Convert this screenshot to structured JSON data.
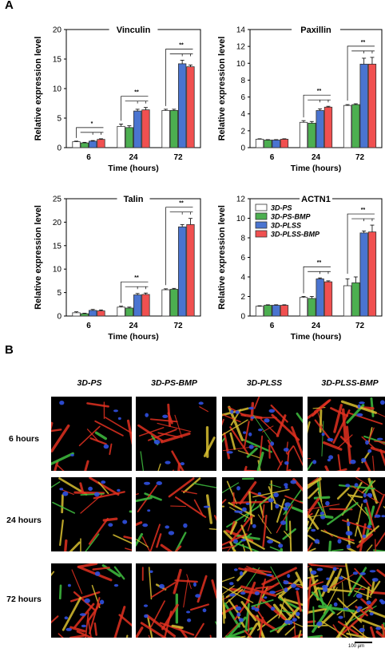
{
  "panel_labels": {
    "a": "A",
    "b": "B"
  },
  "legend": {
    "entries": [
      {
        "label": "3D-PS",
        "color": "#ffffff"
      },
      {
        "label": "3D-PS-BMP",
        "color": "#4caf50"
      },
      {
        "label": "3D-PLSS",
        "color": "#4a74d0"
      },
      {
        "label": "3D-PLSS-BMP",
        "color": "#f05050"
      }
    ]
  },
  "chart_data": [
    {
      "type": "bar",
      "title": "Vinculin",
      "xlabel": "Time (hours)",
      "ylabel": "Relative expression level",
      "categories": [
        "6",
        "24",
        "72"
      ],
      "ylim": [
        0,
        20
      ],
      "yticks": [
        0,
        5,
        10,
        15,
        20
      ],
      "series": [
        {
          "name": "3D-PS",
          "values": [
            1.0,
            3.6,
            6.3
          ],
          "errors": [
            0.1,
            0.4,
            0.2
          ]
        },
        {
          "name": "3D-PS-BMP",
          "values": [
            0.8,
            3.4,
            6.3
          ],
          "errors": [
            0.1,
            0.3,
            0.2
          ]
        },
        {
          "name": "3D-PLSS",
          "values": [
            1.1,
            6.2,
            14.2
          ],
          "errors": [
            0.1,
            0.3,
            0.6
          ]
        },
        {
          "name": "3D-PLSS-BMP",
          "values": [
            1.4,
            6.4,
            13.7
          ],
          "errors": [
            0.1,
            0.4,
            0.3
          ]
        }
      ],
      "significance": [
        "*",
        "**",
        "**"
      ]
    },
    {
      "type": "bar",
      "title": "Paxillin",
      "xlabel": "Time (hours)",
      "ylabel": "Relative expression level",
      "categories": [
        "6",
        "24",
        "72"
      ],
      "ylim": [
        0,
        14
      ],
      "yticks": [
        0,
        2,
        4,
        6,
        8,
        10,
        12,
        14
      ],
      "series": [
        {
          "name": "3D-PS",
          "values": [
            1.0,
            3.0,
            5.0
          ],
          "errors": [
            0.05,
            0.2,
            0.1
          ]
        },
        {
          "name": "3D-PS-BMP",
          "values": [
            0.9,
            2.9,
            5.1
          ],
          "errors": [
            0.05,
            0.2,
            0.1
          ]
        },
        {
          "name": "3D-PLSS",
          "values": [
            0.9,
            4.4,
            9.9
          ],
          "errors": [
            0.05,
            0.2,
            0.7
          ]
        },
        {
          "name": "3D-PLSS-BMP",
          "values": [
            1.0,
            4.8,
            9.9
          ],
          "errors": [
            0.05,
            0.1,
            0.8
          ]
        }
      ],
      "significance": [
        "",
        "**",
        "**"
      ]
    },
    {
      "type": "bar",
      "title": "Talin",
      "xlabel": "Time (hours)",
      "ylabel": "Relative expression level",
      "categories": [
        "6",
        "24",
        "72"
      ],
      "ylim": [
        0,
        25
      ],
      "yticks": [
        0,
        5,
        10,
        15,
        20,
        25
      ],
      "series": [
        {
          "name": "3D-PS",
          "values": [
            0.7,
            1.9,
            5.6
          ],
          "errors": [
            0.2,
            0.2,
            0.2
          ]
        },
        {
          "name": "3D-PS-BMP",
          "values": [
            0.5,
            1.7,
            5.7
          ],
          "errors": [
            0.1,
            0.2,
            0.2
          ]
        },
        {
          "name": "3D-PLSS",
          "values": [
            1.2,
            4.5,
            19.0
          ],
          "errors": [
            0.2,
            0.3,
            0.5
          ]
        },
        {
          "name": "3D-PLSS-BMP",
          "values": [
            1.1,
            4.6,
            19.5
          ],
          "errors": [
            0.2,
            0.3,
            1.3
          ]
        }
      ],
      "significance": [
        "",
        "**",
        "**"
      ]
    },
    {
      "type": "bar",
      "title": "ACTN1",
      "xlabel": "Time (hours)",
      "ylabel": "Relative expression level",
      "categories": [
        "6",
        "24",
        "72"
      ],
      "ylim": [
        0,
        12
      ],
      "yticks": [
        0,
        2,
        4,
        6,
        8,
        10,
        12
      ],
      "series": [
        {
          "name": "3D-PS",
          "values": [
            1.0,
            1.9,
            3.1
          ],
          "errors": [
            0.05,
            0.1,
            0.7
          ]
        },
        {
          "name": "3D-PS-BMP",
          "values": [
            1.1,
            1.8,
            3.4
          ],
          "errors": [
            0.05,
            0.2,
            0.6
          ]
        },
        {
          "name": "3D-PLSS",
          "values": [
            1.1,
            3.8,
            8.5
          ],
          "errors": [
            0.05,
            0.1,
            0.2
          ]
        },
        {
          "name": "3D-PLSS-BMP",
          "values": [
            1.1,
            3.5,
            8.6
          ],
          "errors": [
            0.05,
            0.1,
            0.7
          ]
        }
      ],
      "significance": [
        "",
        "**",
        "**"
      ]
    }
  ],
  "micrographs": {
    "columns": [
      "3D-PS",
      "3D-PS-BMP",
      "3D-PLSS",
      "3D-PLSS-BMP"
    ],
    "rows": [
      "6 hours",
      "24 hours",
      "72 hours"
    ],
    "scale_bar_label": "100 μm",
    "colors": {
      "actin": "#e03020",
      "focal": "#40c040",
      "nuclei": "#3050e0",
      "merge": "#d8c030"
    }
  }
}
